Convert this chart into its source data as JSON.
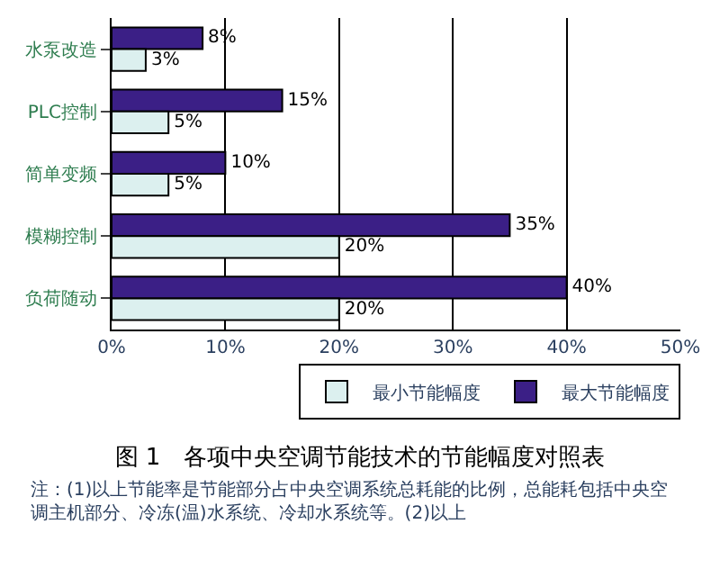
{
  "chart_data": {
    "type": "bar",
    "orientation": "horizontal",
    "title": "图 1　各项中央空调节能技术的节能幅度对照表",
    "categories": [
      "水泵改造",
      "PLC控制",
      "简单变频",
      "模糊控制",
      "负荷随动"
    ],
    "series": [
      {
        "name": "最大节能幅度",
        "color": "#3b1f86",
        "values": [
          8,
          15,
          10,
          35,
          40
        ],
        "value_labels": [
          "8%",
          "15%",
          "10%",
          "35%",
          "40%"
        ]
      },
      {
        "name": "最小节能幅度",
        "color": "#dcf0ef",
        "values": [
          3,
          5,
          5,
          20,
          20
        ],
        "value_labels": [
          "3%",
          "5%",
          "5%",
          "20%",
          "20%"
        ]
      }
    ],
    "xlim": [
      0,
      50
    ],
    "xticks": [
      {
        "value": 0,
        "label": "0%"
      },
      {
        "value": 10,
        "label": "10%"
      },
      {
        "value": 20,
        "label": "20%"
      },
      {
        "value": 30,
        "label": "30%"
      },
      {
        "value": 40,
        "label": "40%"
      },
      {
        "value": 50,
        "label": "50%"
      }
    ],
    "grid": "x",
    "legend": "bottom right",
    "annotations": [
      "注：(1)以上节能率是节能部分占中央空调系统总耗能的比例，总能耗包括中央空调主机部分、冷冻(温)水系统、冷却水系统等。(2)以上"
    ]
  }
}
